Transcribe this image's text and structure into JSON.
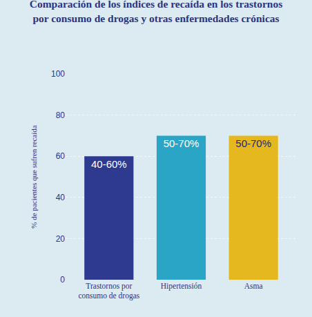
{
  "chart_data": {
    "type": "bar",
    "title": "Comparación de los índices de recaída en los trastornos por consumo de drogas y otras enfermedades crónicas",
    "y_label": "% de pacientes que sufren recaída",
    "categories": [
      "Trastornos por consumo de drogas",
      "Hipertensión",
      "Asma"
    ],
    "values": [
      60,
      70,
      70
    ],
    "value_labels": [
      "40-60%",
      "50-70%",
      "50-70%"
    ],
    "colors": [
      "#2e3990",
      "#2ba5c6",
      "#e6b820"
    ],
    "ylim": [
      0,
      100
    ],
    "yticks": [
      0,
      20,
      40,
      60,
      80,
      100
    ],
    "grid": true,
    "data_labels": true
  }
}
